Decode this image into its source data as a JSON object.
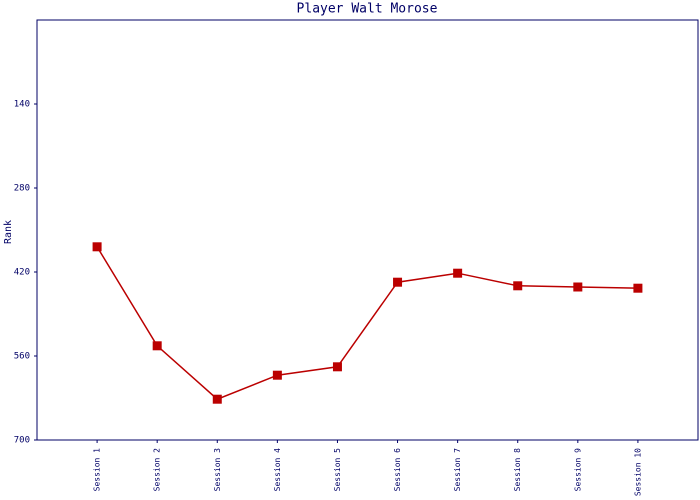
{
  "chart_data": {
    "type": "line",
    "title": "Player Walt Morose",
    "ylabel": "Rank",
    "categories": [
      "Session 1",
      "Session 2",
      "Session 3",
      "Session 4",
      "Session 5",
      "Session 6",
      "Session 7",
      "Session 8",
      "Session 9",
      "Session 10"
    ],
    "series": [
      {
        "name": "Rank",
        "color": "#bb0000",
        "values": [
          378,
          543,
          632,
          592,
          578,
          437,
          422,
          443,
          445,
          447
        ]
      }
    ],
    "ylim": [
      700,
      0
    ],
    "yticks": [
      140,
      280,
      420,
      560,
      700
    ],
    "grid": false
  }
}
